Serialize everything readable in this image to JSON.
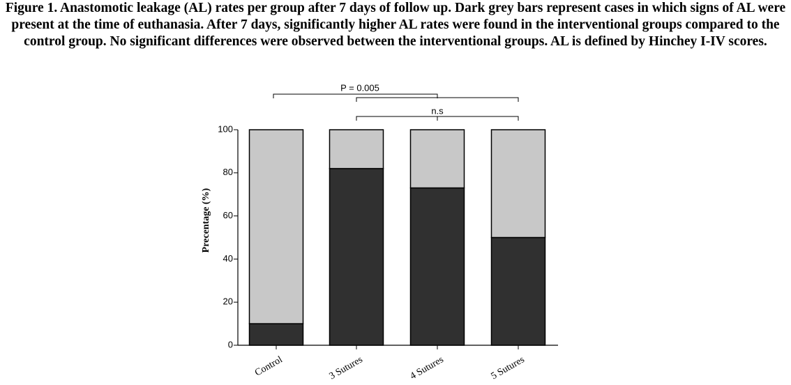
{
  "chart_data": {
    "type": "bar",
    "stacked": true,
    "title": "Figure 1. Anastomotic leakage (AL) rates per group after 7 days of follow up. Dark grey bars represent cases in which signs of AL were present at the time of euthanasia. After 7 days, significantly higher AL rates were found in the interventional groups compared to the control group. No significant differences were observed between the interventional groups. AL is defined by Hinchey I-IV scores.",
    "y_label": "Precentage (%)",
    "categories": [
      "Control",
      "3 Sutures",
      "4 Sutures",
      "5 Sutures"
    ],
    "series": [
      {
        "color": "#303030",
        "values": [
          10,
          82,
          73,
          50
        ]
      },
      {
        "color": "#c8c8c8",
        "values": [
          90,
          18,
          27,
          50
        ]
      }
    ],
    "ylim": [
      0,
      100
    ],
    "yticks": [
      0,
      20,
      40,
      60,
      80,
      100
    ],
    "annotations": [
      "P = 0.005",
      "n.s"
    ]
  }
}
